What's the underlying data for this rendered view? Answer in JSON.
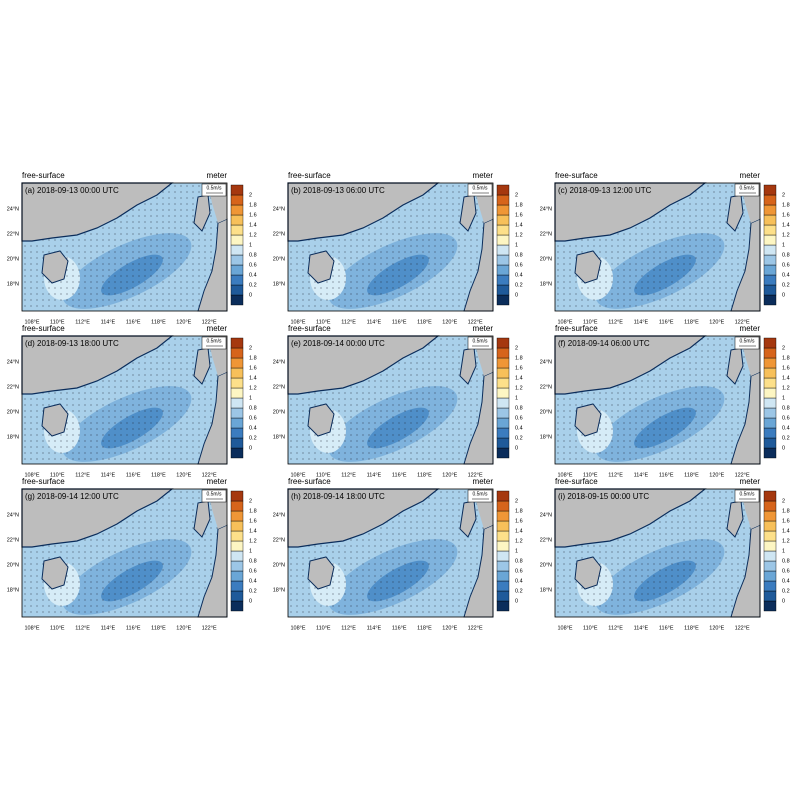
{
  "panels": [
    {
      "left_title": "free-surface",
      "right_title": "meter",
      "label": "(a) 2018-09-13 00:00 UTC",
      "vector_ref": "0.5m/s"
    },
    {
      "left_title": "free-surface",
      "right_title": "meter",
      "label": "(b) 2018-09-13 06:00 UTC",
      "vector_ref": "0.5m/s"
    },
    {
      "left_title": "free-surface",
      "right_title": "meter",
      "label": "(c) 2018-09-13 12:00 UTC",
      "vector_ref": "0.5m/s"
    },
    {
      "left_title": "free-surface",
      "right_title": "meter",
      "label": "(d) 2018-09-13 18:00 UTC",
      "vector_ref": "0.5m/s"
    },
    {
      "left_title": "free-surface",
      "right_title": "meter",
      "label": "(e) 2018-09-14 00:00 UTC",
      "vector_ref": "0.5m/s"
    },
    {
      "left_title": "free-surface",
      "right_title": "meter",
      "label": "(f) 2018-09-14 06:00 UTC",
      "vector_ref": "0.5m/s"
    },
    {
      "left_title": "free-surface",
      "right_title": "meter",
      "label": "(g) 2018-09-14 12:00 UTC",
      "vector_ref": "0.5m/s"
    },
    {
      "left_title": "free-surface",
      "right_title": "meter",
      "label": "(h) 2018-09-14 18:00 UTC",
      "vector_ref": "0.5m/s"
    },
    {
      "left_title": "free-surface",
      "right_title": "meter",
      "label": "(i) 2018-09-15 00:00 UTC",
      "vector_ref": "0.5m/s"
    }
  ],
  "lon_ticks": [
    "108°E",
    "110°E",
    "112°E",
    "114°E",
    "116°E",
    "118°E",
    "120°E",
    "122°E"
  ],
  "lat_ticks": [
    "24°N",
    "22°N",
    "20°N",
    "18°N"
  ],
  "colorbar": {
    "levels": [
      0,
      0.2,
      0.4,
      0.6,
      0.8,
      1,
      1.2,
      1.4,
      1.6,
      1.8,
      2
    ],
    "colors": [
      "#0b2d5b",
      "#1f5a9a",
      "#3b7cbf",
      "#6aa6d6",
      "#9cc6e6",
      "#cfe6f3",
      "#fdf6c3",
      "#fde08a",
      "#f7c05a",
      "#ef9636",
      "#d6641b",
      "#a5380f"
    ]
  }
}
